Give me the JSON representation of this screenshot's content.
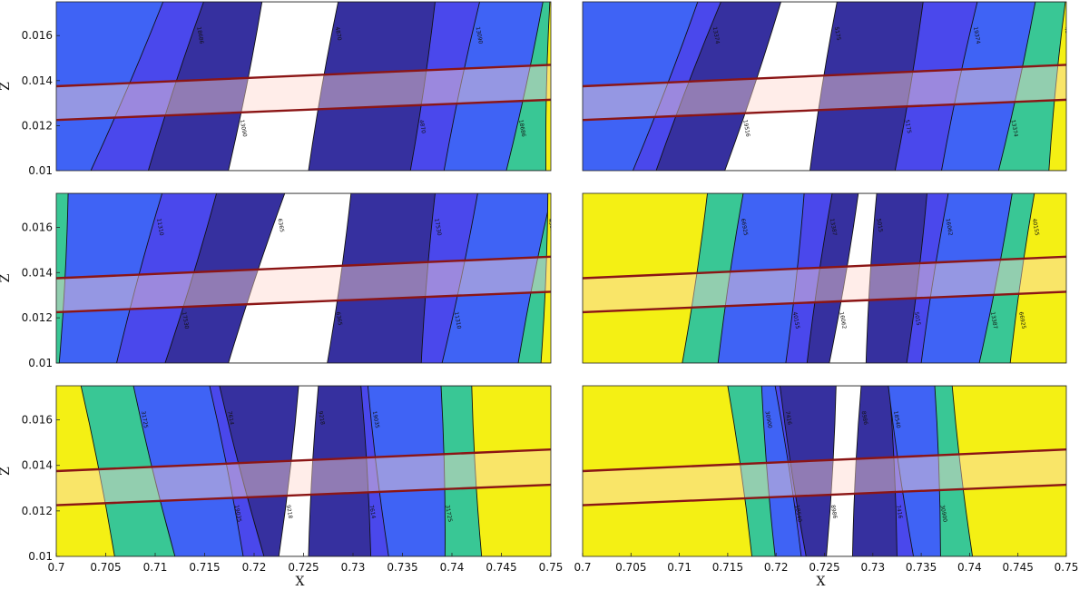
{
  "figure": {
    "colors": {
      "yellow": "#f4f014",
      "green": "#39c795",
      "blue": "#3f63f5",
      "indigo": "#4a48ec",
      "navy": "#36309f",
      "white": "#ffffff",
      "band_fill": "#ffd7cf",
      "band_line": "#8b1515"
    }
  },
  "chart_data": [
    {
      "type": "contour",
      "panel": "top-left",
      "xlim": [
        0.7,
        0.75
      ],
      "ylim": [
        0.01,
        0.0175
      ],
      "ylabel": "Z",
      "xlabel": "",
      "yticks": [
        "0.01",
        "0.012",
        "0.014",
        "0.016"
      ],
      "xticks": [],
      "regions": [
        "blue",
        "indigo",
        "navy",
        "white",
        "navy",
        "indigo",
        "blue",
        "green",
        "yellow"
      ],
      "boundaries": [
        [
          0.7035,
          0.7108
        ],
        [
          0.7093,
          0.7149
        ],
        [
          0.7174,
          0.7208
        ],
        [
          0.7255,
          0.7285
        ],
        [
          0.7358,
          0.7383
        ],
        [
          0.7392,
          0.7428
        ],
        [
          0.7455,
          0.7492
        ],
        [
          0.7495,
          0.7499
        ]
      ],
      "contour_labels": [
        "18686",
        "13090",
        "4870",
        "4870",
        "13090",
        "18686",
        "46740"
      ],
      "band": {
        "lower": [
          0.01225,
          0.01315
        ],
        "upper": [
          0.01375,
          0.0147
        ]
      }
    },
    {
      "type": "contour",
      "panel": "top-right",
      "xlim": [
        0.7,
        0.75
      ],
      "ylim": [
        0.01,
        0.0175
      ],
      "ylabel": "",
      "xlabel": "",
      "yticks": [],
      "xticks": [],
      "regions": [
        "blue",
        "indigo",
        "navy",
        "white",
        "navy",
        "indigo",
        "blue",
        "green",
        "yellow"
      ],
      "boundaries": [
        [
          0.7052,
          0.7119
        ],
        [
          0.7076,
          0.7143
        ],
        [
          0.7147,
          0.7205
        ],
        [
          0.7235,
          0.7263
        ],
        [
          0.7323,
          0.7352
        ],
        [
          0.7371,
          0.7408
        ],
        [
          0.743,
          0.7468
        ],
        [
          0.7482,
          0.7499
        ]
      ],
      "contour_labels": [
        "13374",
        "19516",
        "5175",
        "5175",
        "19374",
        "13374",
        "48456"
      ],
      "band": {
        "lower": [
          0.01225,
          0.01315
        ],
        "upper": [
          0.01375,
          0.0147
        ]
      }
    },
    {
      "type": "contour",
      "panel": "middle-left",
      "xlim": [
        0.7,
        0.75
      ],
      "ylim": [
        0.01,
        0.0175
      ],
      "ylabel": "Z",
      "xlabel": "",
      "yticks": [
        "0.01",
        "0.012",
        "0.014",
        "0.016"
      ],
      "xticks": [],
      "regions": [
        "green",
        "blue",
        "indigo",
        "navy",
        "white",
        "navy",
        "indigo",
        "blue",
        "green",
        "yellow"
      ],
      "boundaries": [
        [
          0.7003,
          0.7012
        ],
        [
          0.7061,
          0.7107
        ],
        [
          0.711,
          0.7162
        ],
        [
          0.7174,
          0.7231
        ],
        [
          0.7274,
          0.7298
        ],
        [
          0.7369,
          0.7383
        ],
        [
          0.739,
          0.7426
        ],
        [
          0.7467,
          0.7501
        ],
        [
          0.749,
          0.7497
        ]
      ],
      "contour_labels": [
        "11310",
        "17530",
        "6365",
        "6365",
        "17530",
        "11310",
        "43825"
      ],
      "band": {
        "lower": [
          0.01225,
          0.01315
        ],
        "upper": [
          0.01375,
          0.0147
        ]
      }
    },
    {
      "type": "contour",
      "panel": "middle-right",
      "xlim": [
        0.7,
        0.75
      ],
      "ylim": [
        0.01,
        0.0175
      ],
      "ylabel": "",
      "xlabel": "",
      "yticks": [],
      "xticks": [],
      "regions": [
        "yellow",
        "green",
        "blue",
        "indigo",
        "navy",
        "white",
        "navy",
        "indigo",
        "blue",
        "green",
        "yellow"
      ],
      "boundaries": [
        [
          0.7103,
          0.7129
        ],
        [
          0.714,
          0.7166
        ],
        [
          0.721,
          0.7229
        ],
        [
          0.7232,
          0.7258
        ],
        [
          0.7255,
          0.7285
        ],
        [
          0.7293,
          0.7304
        ],
        [
          0.7335,
          0.7356
        ],
        [
          0.735,
          0.7378
        ],
        [
          0.741,
          0.7444
        ],
        [
          0.7442,
          0.7467
        ]
      ],
      "contour_labels": [
        "66925",
        "40155",
        "13387",
        "16062",
        "5015",
        "5015",
        "16062",
        "13387",
        "40155",
        "66925"
      ],
      "band": {
        "lower": [
          0.01225,
          0.01315
        ],
        "upper": [
          0.01375,
          0.0147
        ]
      }
    },
    {
      "type": "contour",
      "panel": "bottom-left",
      "xlim": [
        0.7,
        0.75
      ],
      "ylim": [
        0.01,
        0.0175
      ],
      "ylabel": "Z",
      "xlabel": "X",
      "yticks": [
        "0.01",
        "0.012",
        "0.014",
        "0.016"
      ],
      "xticks": [
        "0.7",
        "0.705",
        "0.71",
        "0.715",
        "0.72",
        "0.725",
        "0.73",
        "0.735",
        "0.74",
        "0.745",
        "0.75"
      ],
      "regions": [
        "yellow",
        "green",
        "blue",
        "indigo",
        "navy",
        "white",
        "navy",
        "indigo",
        "blue",
        "green",
        "yellow"
      ],
      "boundaries": [
        [
          0.7059,
          0.7025
        ],
        [
          0.712,
          0.7078
        ],
        [
          0.7189,
          0.7155
        ],
        [
          0.721,
          0.7165
        ],
        [
          0.7225,
          0.7245
        ],
        [
          0.7255,
          0.7265
        ],
        [
          0.7318,
          0.7308
        ],
        [
          0.7336,
          0.7315
        ],
        [
          0.7393,
          0.7389
        ],
        [
          0.743,
          0.742
        ]
      ],
      "contour_labels": [
        "31725",
        "19035",
        "7614",
        "9218",
        "9218",
        "7614",
        "19035",
        "31725"
      ],
      "band": {
        "lower": [
          0.01225,
          0.01315
        ],
        "upper": [
          0.01375,
          0.0147
        ]
      }
    },
    {
      "type": "contour",
      "panel": "bottom-right",
      "xlim": [
        0.7,
        0.75
      ],
      "ylim": [
        0.01,
        0.0175
      ],
      "ylabel": "",
      "xlabel": "X",
      "yticks": [],
      "xticks": [
        "0.7",
        "0.705",
        "0.71",
        "0.715",
        "0.72",
        "0.725",
        "0.73",
        "0.735",
        "0.74",
        "0.745",
        "0.75"
      ],
      "regions": [
        "yellow",
        "green",
        "blue",
        "indigo",
        "navy",
        "white",
        "navy",
        "indigo",
        "blue",
        "green",
        "yellow"
      ],
      "boundaries": [
        [
          0.7175,
          0.715
        ],
        [
          0.7199,
          0.7185
        ],
        [
          0.7226,
          0.7199
        ],
        [
          0.7231,
          0.7204
        ],
        [
          0.7252,
          0.7262
        ],
        [
          0.7279,
          0.7288
        ],
        [
          0.7325,
          0.7317
        ],
        [
          0.7342,
          0.7316
        ],
        [
          0.737,
          0.7364
        ],
        [
          0.7403,
          0.7382
        ]
      ],
      "contour_labels": [
        "30900",
        "18540",
        "7416",
        "8986",
        "8986",
        "7416",
        "18540",
        "30900"
      ],
      "band": {
        "lower": [
          0.01225,
          0.01315
        ],
        "upper": [
          0.01375,
          0.0147
        ]
      }
    }
  ]
}
